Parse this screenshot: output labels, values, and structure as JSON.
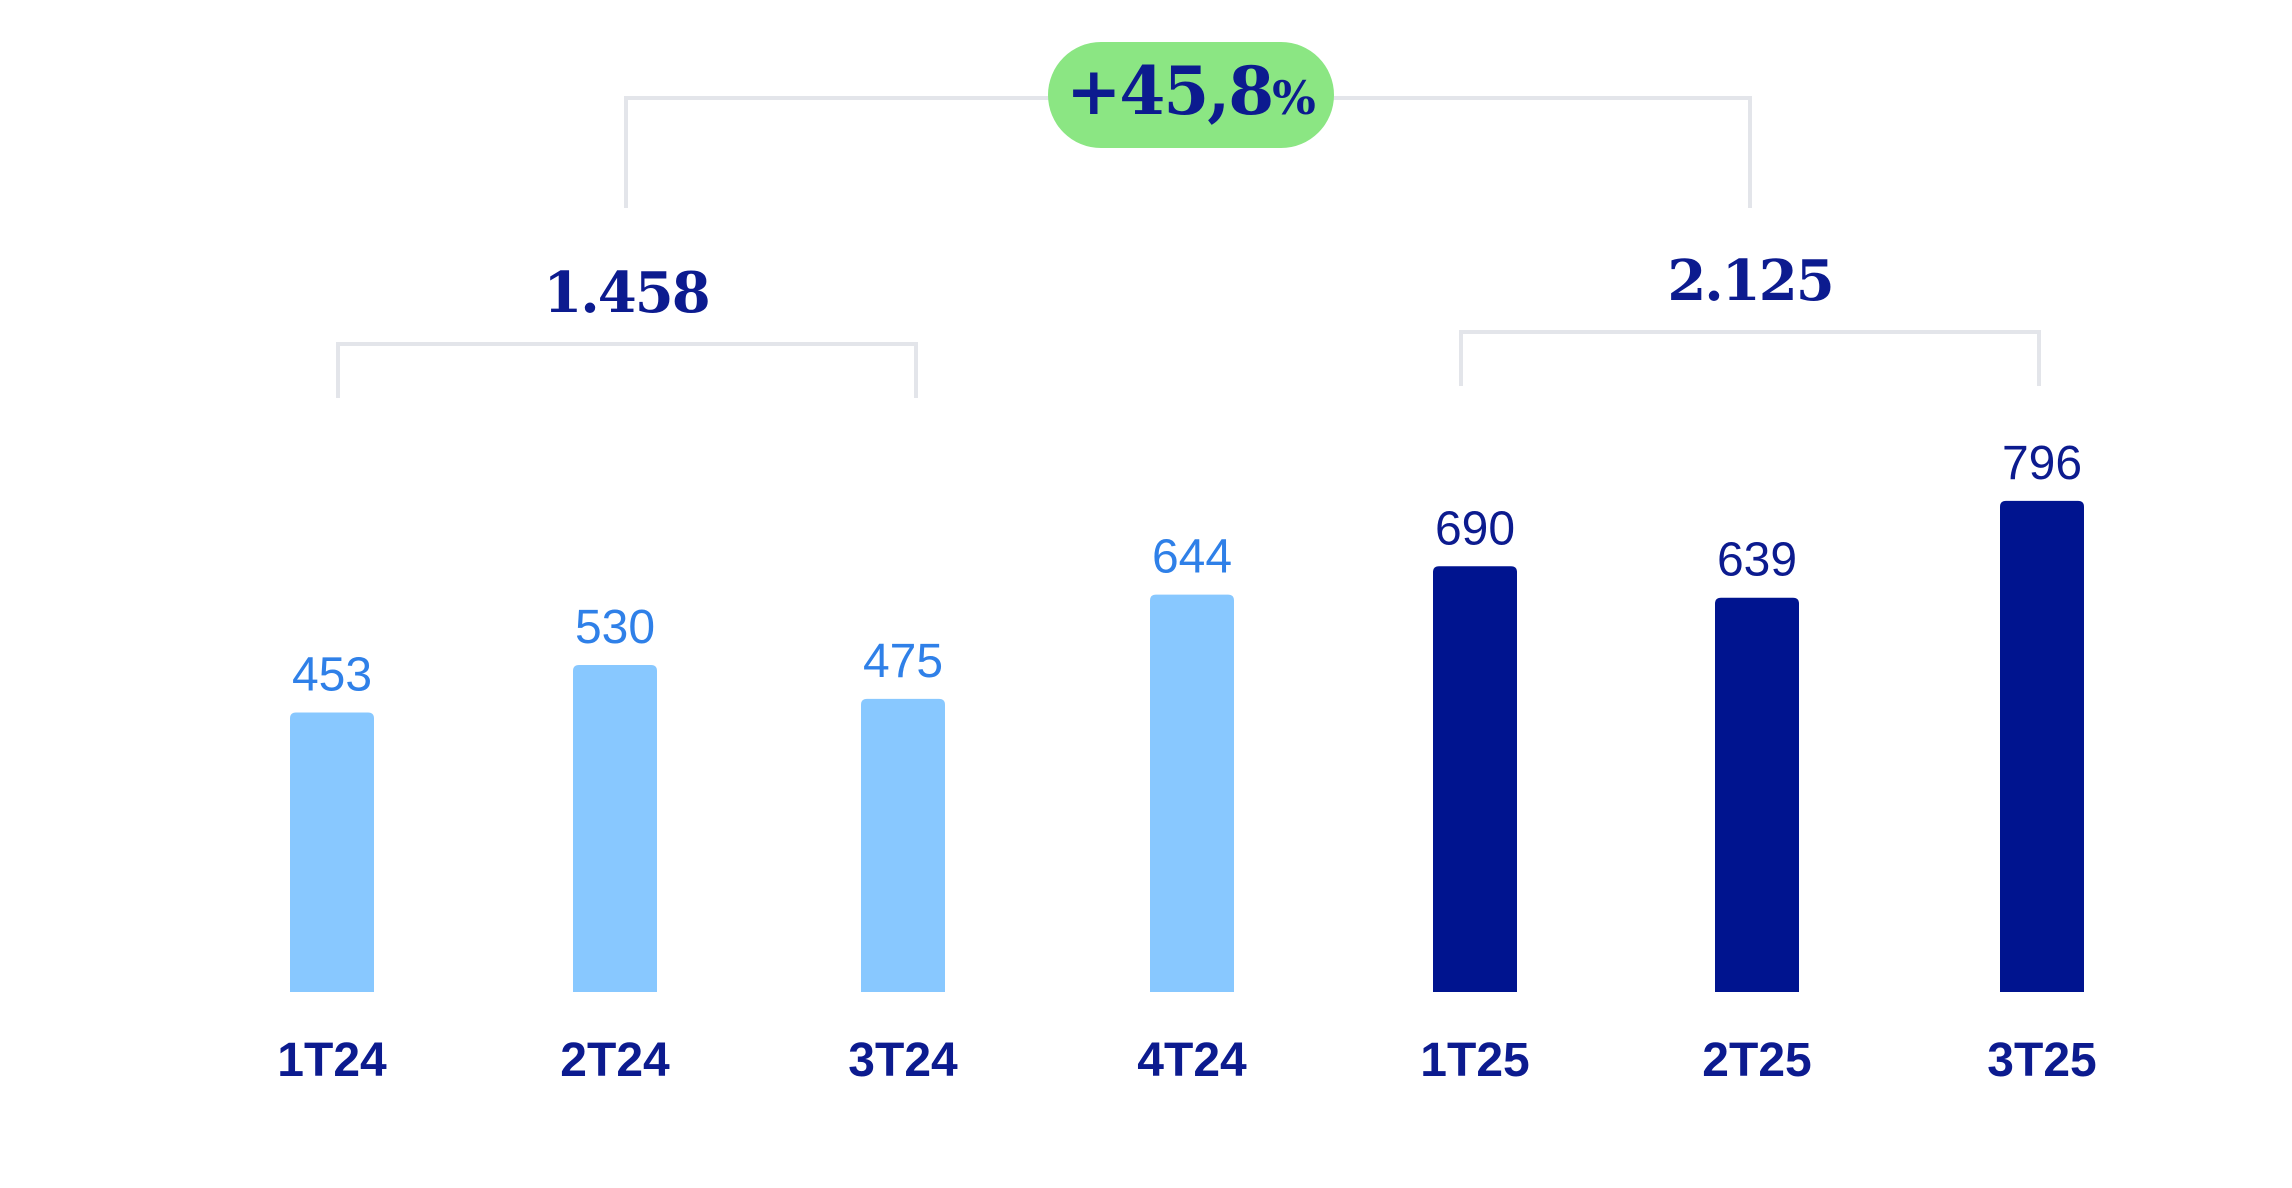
{
  "chart_data": {
    "type": "bar",
    "categories": [
      "1T24",
      "2T24",
      "3T24",
      "4T24",
      "1T25",
      "2T25",
      "3T25"
    ],
    "values": [
      453,
      530,
      475,
      644,
      690,
      639,
      796
    ],
    "value_labels": [
      "453",
      "530",
      "475",
      "644",
      "690",
      "639",
      "796"
    ],
    "groups": [
      {
        "categories": [
          "1T24",
          "2T24",
          "3T24"
        ],
        "total": "1.458"
      },
      {
        "categories": [
          "1T25",
          "2T25",
          "3T25"
        ],
        "total": "2.125"
      }
    ],
    "growth": {
      "number": "+45,8",
      "unit": "%"
    },
    "ylim": [
      0,
      796
    ],
    "grid": false,
    "legend": "none",
    "colors": {
      "bar_2024": "#88c8ff",
      "bar_2025": "#00148f",
      "label_2024": "#2f80e8",
      "label_2025": "#0c1b8f",
      "category": "#0c1b8f",
      "pill": "#8be683",
      "bracket": "#e3e5ea"
    }
  }
}
